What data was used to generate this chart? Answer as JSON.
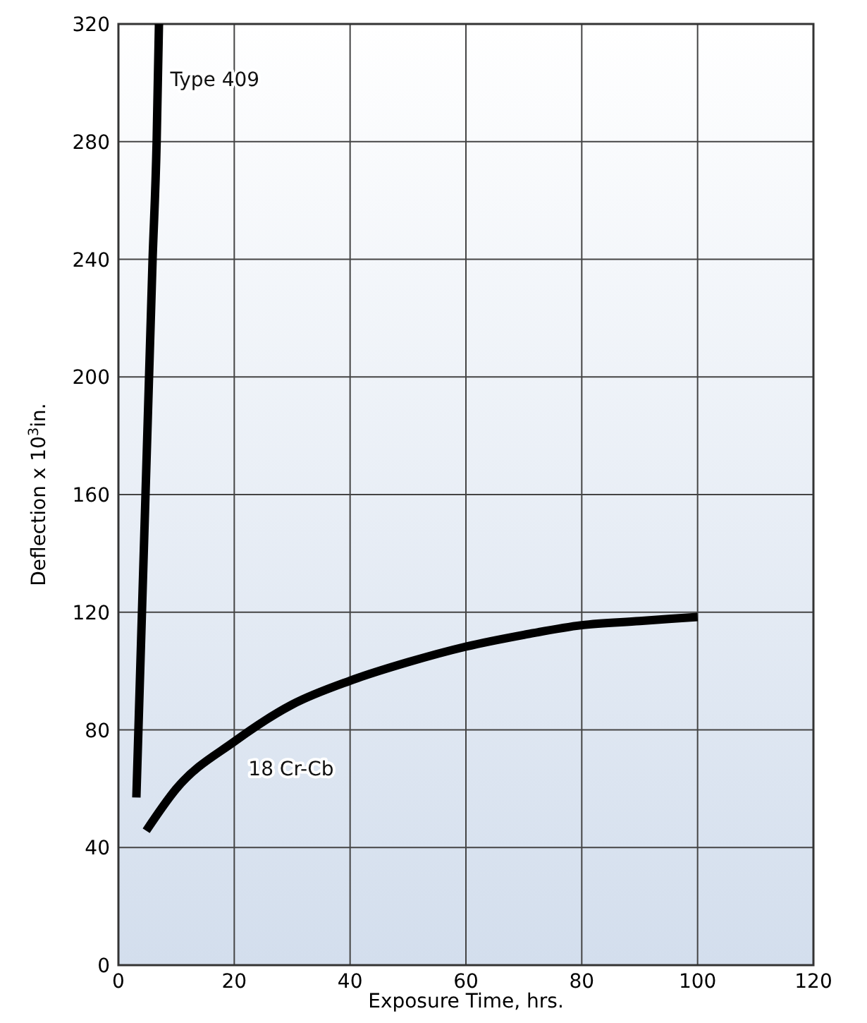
{
  "chart_data": {
    "type": "line",
    "xlabel": "Exposure Time, hrs.",
    "ylabel": "Deflection x 10$^{3}$in.",
    "xlim": [
      0,
      120
    ],
    "xticks": [
      0,
      20,
      40,
      60,
      80,
      100,
      120
    ],
    "ylim": [
      0,
      320
    ],
    "yticks": [
      0,
      40,
      80,
      120,
      160,
      200,
      240,
      280,
      320
    ],
    "grid": true,
    "series": [
      {
        "name": "Type 409",
        "color": "#000000",
        "x": [
          3.1,
          5.9,
          6.6,
          7.0
        ],
        "values": [
          57,
          240,
          280,
          320
        ]
      },
      {
        "name": "18 Cr-Cb",
        "color": "#000000",
        "x": [
          4.8,
          10,
          20,
          30,
          40,
          50,
          60,
          70,
          80,
          90,
          100
        ],
        "values": [
          45.7,
          60,
          76,
          88.6,
          96.7,
          103,
          108.3,
          112.3,
          115.6,
          117,
          118.4
        ]
      }
    ]
  }
}
